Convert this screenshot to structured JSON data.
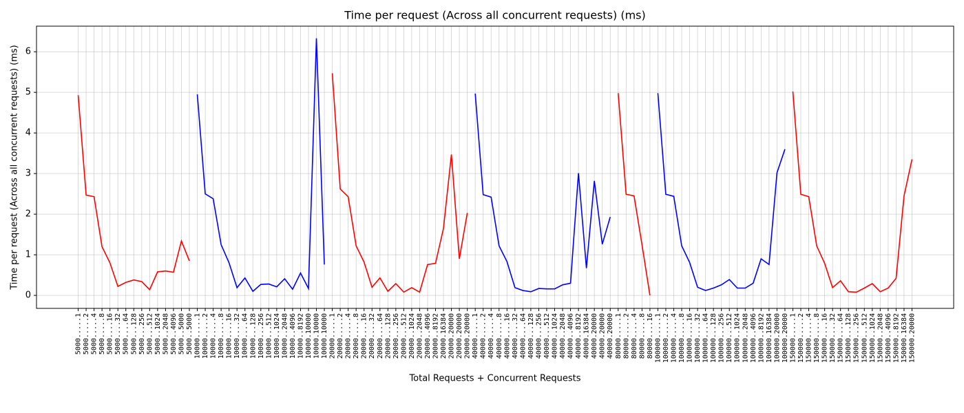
{
  "chart_data": {
    "type": "line",
    "title": "Time per request (Across all concurrent requests) (ms)",
    "x_label": "Total Requests + Concurrent Requests",
    "y_label": "Time per request (Across all concurrent requests) (ms)",
    "categories": [
      "5000.....1",
      "5000.....2",
      "5000.....4",
      "5000.....8",
      "5000....16",
      "5000....32",
      "5000....64",
      "5000...128",
      "5000...256",
      "5000...512",
      "5000..1024",
      "5000..2048",
      "5000..4096",
      "5000..5000",
      "5000..5000",
      "10000.....1",
      "10000.....2",
      "10000.....4",
      "10000.....8",
      "10000....16",
      "10000....32",
      "10000....64",
      "10000...128",
      "10000...256",
      "10000...512",
      "10000..1024",
      "10000..2048",
      "10000..4096",
      "10000..8192",
      "10000.10000",
      "10000.10000",
      "10000.10000",
      "20000.....1",
      "20000.....2",
      "20000.....4",
      "20000.....8",
      "20000....16",
      "20000....32",
      "20000....64",
      "20000...128",
      "20000...256",
      "20000...512",
      "20000..1024",
      "20000..2048",
      "20000..4096",
      "20000..8192",
      "20000.16384",
      "20000.20000",
      "20000.20000",
      "20000.20000",
      "40000.....1",
      "40000.....2",
      "40000.....4",
      "40000.....8",
      "40000....16",
      "40000....32",
      "40000....64",
      "40000...128",
      "40000...256",
      "40000...512",
      "40000..1024",
      "40000..2048",
      "40000..4096",
      "40000..8192",
      "40000.16384",
      "40000.20000",
      "40000.20000",
      "40000.20000",
      "80000.....1",
      "80000.....2",
      "80000.....4",
      "80000.....8",
      "80000....16",
      "100000.....1",
      "100000.....2",
      "100000.....4",
      "100000.....8",
      "100000....16",
      "100000....32",
      "100000....64",
      "100000...128",
      "100000...256",
      "100000...512",
      "100000..1024",
      "100000..2048",
      "100000..4096",
      "100000..8192",
      "100000.16384",
      "100000.20000",
      "100000.20000",
      "150000.....1",
      "150000.....2",
      "150000.....4",
      "150000.....8",
      "150000....16",
      "150000....32",
      "150000....64",
      "150000...128",
      "150000...256",
      "150000...512",
      "150000..1024",
      "150000..2048",
      "150000..4096",
      "150000..8192",
      "150000.16384",
      "150000.20000"
    ],
    "series": [
      {
        "color": "#ff0000",
        "values": [
          4.93,
          2.47,
          2.43,
          1.2,
          0.8,
          0.22,
          0.32,
          0.38,
          0.34,
          0.14,
          0.58,
          0.6,
          0.57,
          1.34,
          0.85,
          null,
          null,
          null,
          null,
          null,
          null,
          null,
          null,
          null,
          null,
          null,
          null,
          null,
          null,
          null,
          null,
          null,
          5.47,
          2.62,
          2.43,
          1.22,
          0.82,
          0.2,
          0.43,
          0.1,
          0.29,
          0.08,
          0.19,
          0.08,
          0.76,
          0.79,
          1.65,
          3.47,
          0.9,
          2.03,
          null,
          null,
          null,
          null,
          null,
          null,
          null,
          null,
          null,
          null,
          null,
          null,
          null,
          null,
          null,
          null,
          null,
          null,
          4.98,
          2.49,
          2.45,
          1.25,
          0.0,
          null,
          null,
          null,
          null,
          null,
          null,
          null,
          null,
          null,
          null,
          null,
          null,
          null,
          null,
          null,
          null,
          null,
          5.02,
          2.49,
          2.43,
          1.22,
          0.79,
          0.19,
          0.36,
          0.09,
          0.08,
          0.18,
          0.29,
          0.09,
          0.18,
          0.42,
          2.45,
          3.35
        ]
      },
      {
        "color": "#0000ff",
        "values": [
          null,
          null,
          null,
          null,
          null,
          null,
          null,
          null,
          null,
          null,
          null,
          null,
          null,
          null,
          null,
          4.95,
          2.5,
          2.38,
          1.25,
          0.8,
          0.19,
          0.43,
          0.1,
          0.27,
          0.28,
          0.21,
          0.41,
          0.15,
          0.55,
          0.17,
          6.33,
          0.76,
          null,
          null,
          null,
          null,
          null,
          null,
          null,
          null,
          null,
          null,
          null,
          null,
          null,
          null,
          null,
          null,
          null,
          null,
          4.97,
          2.48,
          2.42,
          1.22,
          0.83,
          0.19,
          0.12,
          0.09,
          0.17,
          0.16,
          0.16,
          0.26,
          0.3,
          3.01,
          0.67,
          2.82,
          1.26,
          1.93,
          null,
          null,
          null,
          null,
          null,
          4.98,
          2.49,
          2.44,
          1.22,
          0.81,
          0.2,
          0.12,
          0.18,
          0.26,
          0.39,
          0.18,
          0.18,
          0.3,
          0.9,
          0.76,
          3.02,
          3.6,
          null,
          null,
          null,
          null,
          null,
          null,
          null,
          null,
          null,
          null,
          null,
          null,
          null,
          null,
          null,
          null
        ]
      }
    ],
    "ylim": [
      -0.32,
      6.63
    ],
    "yticks": [
      0,
      1,
      2,
      3,
      4,
      5,
      6
    ],
    "grid": true
  }
}
